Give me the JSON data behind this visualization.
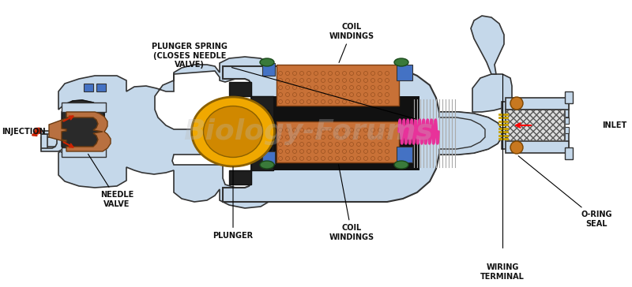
{
  "bg_color": "#ffffff",
  "body_color": "#c5d8ea",
  "body_edge": "#333333",
  "coil_color": "#c87137",
  "coil_edge": "#7a3c10",
  "spring_color": "#e8329a",
  "plunger_color": "#f0a800",
  "plunger_edge": "#8B6000",
  "needle_color": "#b87040",
  "needle_edge": "#6B3A10",
  "black_fill": "#1a1a1a",
  "blue_accent": "#4472c4",
  "green_oval": "#3a7a3a",
  "orange_circle": "#c87820",
  "orange_edge": "#7a4400",
  "gold_coil": "#c8a000",
  "gray_lines": "#888888",
  "label_color": "#111111",
  "label_fontsize": 7.0,
  "watermark": "Biology-Forums",
  "labels": {
    "injection": "INJECTION",
    "needle_valve": "NEEDLE\nVALVE",
    "plunger": "PLUNGER",
    "coil_top": "COIL\nWINDINGS",
    "coil_bot": "COIL\nWINDINGS",
    "spring": "PLUNGER SPRING\n(CLOSES NEEDLE\nVALVE)",
    "wiring": "WIRING\nTERMINAL",
    "oring": "O-RING\nSEAL",
    "inlet": "INLET"
  }
}
